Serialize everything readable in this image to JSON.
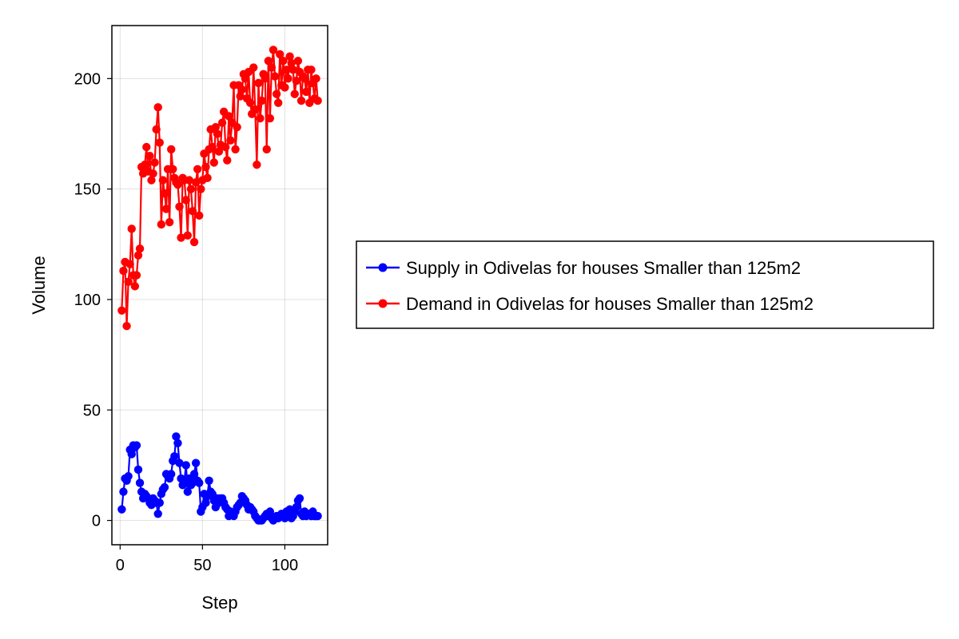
{
  "chart_data": {
    "type": "line",
    "xlabel": "Step",
    "ylabel": "Volume",
    "xlim": [
      -5,
      126
    ],
    "ylim": [
      -11,
      224
    ],
    "xticks": [
      0,
      50,
      100
    ],
    "yticks": [
      0,
      50,
      100,
      150,
      200
    ],
    "grid": true,
    "legend_position": "right",
    "x": [
      1,
      2,
      3,
      4,
      5,
      6,
      7,
      8,
      9,
      10,
      11,
      12,
      13,
      14,
      15,
      16,
      17,
      18,
      19,
      20,
      21,
      22,
      23,
      24,
      25,
      26,
      27,
      28,
      29,
      30,
      31,
      32,
      33,
      34,
      35,
      36,
      37,
      38,
      39,
      40,
      41,
      42,
      43,
      44,
      45,
      46,
      47,
      48,
      49,
      50,
      51,
      52,
      53,
      54,
      55,
      56,
      57,
      58,
      59,
      60,
      61,
      62,
      63,
      64,
      65,
      66,
      67,
      68,
      69,
      70,
      71,
      72,
      73,
      74,
      75,
      76,
      77,
      78,
      79,
      80,
      81,
      82,
      83,
      84,
      85,
      86,
      87,
      88,
      89,
      90,
      91,
      92,
      93,
      94,
      95,
      96,
      97,
      98,
      99,
      100,
      101,
      102,
      103,
      104,
      105,
      106,
      107,
      108,
      109,
      110,
      111,
      112,
      113,
      114,
      115,
      116,
      117,
      118,
      119,
      120
    ],
    "series": [
      {
        "name": "Supply in Odivelas for houses Smaller than 125m2",
        "color": "#0000ff",
        "values": [
          5,
          13,
          19,
          18,
          20,
          32,
          30,
          34,
          33,
          34,
          23,
          17,
          13,
          10,
          12,
          11,
          10,
          8,
          7,
          10,
          9,
          8,
          3,
          8,
          12,
          14,
          15,
          21,
          20,
          19,
          21,
          27,
          29,
          38,
          35,
          26,
          19,
          16,
          18,
          25,
          13,
          19,
          16,
          17,
          21,
          26,
          18,
          17,
          4,
          6,
          12,
          8,
          11,
          18,
          13,
          12,
          9,
          6,
          10,
          8,
          10,
          10,
          8,
          6,
          5,
          2,
          4,
          3,
          2,
          4,
          6,
          7,
          8,
          11,
          10,
          9,
          7,
          5,
          6,
          5,
          4,
          2,
          1,
          0,
          0,
          0,
          1,
          2,
          3,
          2,
          4,
          1,
          0,
          1,
          2,
          1,
          2,
          3,
          2,
          1,
          4,
          3,
          5,
          1,
          2,
          4,
          6,
          9,
          10,
          3,
          2,
          4,
          2,
          3,
          3,
          2,
          4,
          2,
          2,
          2
        ]
      },
      {
        "name": "Demand in Odivelas for houses Smaller than 125m2",
        "color": "#ff0000",
        "values": [
          95,
          113,
          117,
          88,
          108,
          116,
          132,
          111,
          106,
          111,
          120,
          123,
          160,
          157,
          161,
          169,
          158,
          165,
          154,
          157,
          162,
          177,
          187,
          171,
          134,
          154,
          148,
          141,
          159,
          135,
          168,
          159,
          155,
          153,
          152,
          142,
          128,
          155,
          154,
          145,
          129,
          154,
          150,
          140,
          126,
          153,
          159,
          138,
          150,
          154,
          166,
          160,
          155,
          168,
          177,
          169,
          162,
          178,
          175,
          167,
          170,
          180,
          185,
          169,
          163,
          183,
          172,
          180,
          197,
          168,
          178,
          197,
          192,
          195,
          202,
          200,
          191,
          203,
          189,
          184,
          205,
          186,
          161,
          198,
          182,
          190,
          202,
          200,
          168,
          208,
          182,
          205,
          213,
          201,
          193,
          189,
          211,
          197,
          208,
          196,
          204,
          200,
          210,
          207,
          204,
          193,
          199,
          208,
          203,
          190,
          201,
          200,
          194,
          204,
          189,
          204,
          198,
          191,
          200,
          190
        ]
      }
    ]
  }
}
